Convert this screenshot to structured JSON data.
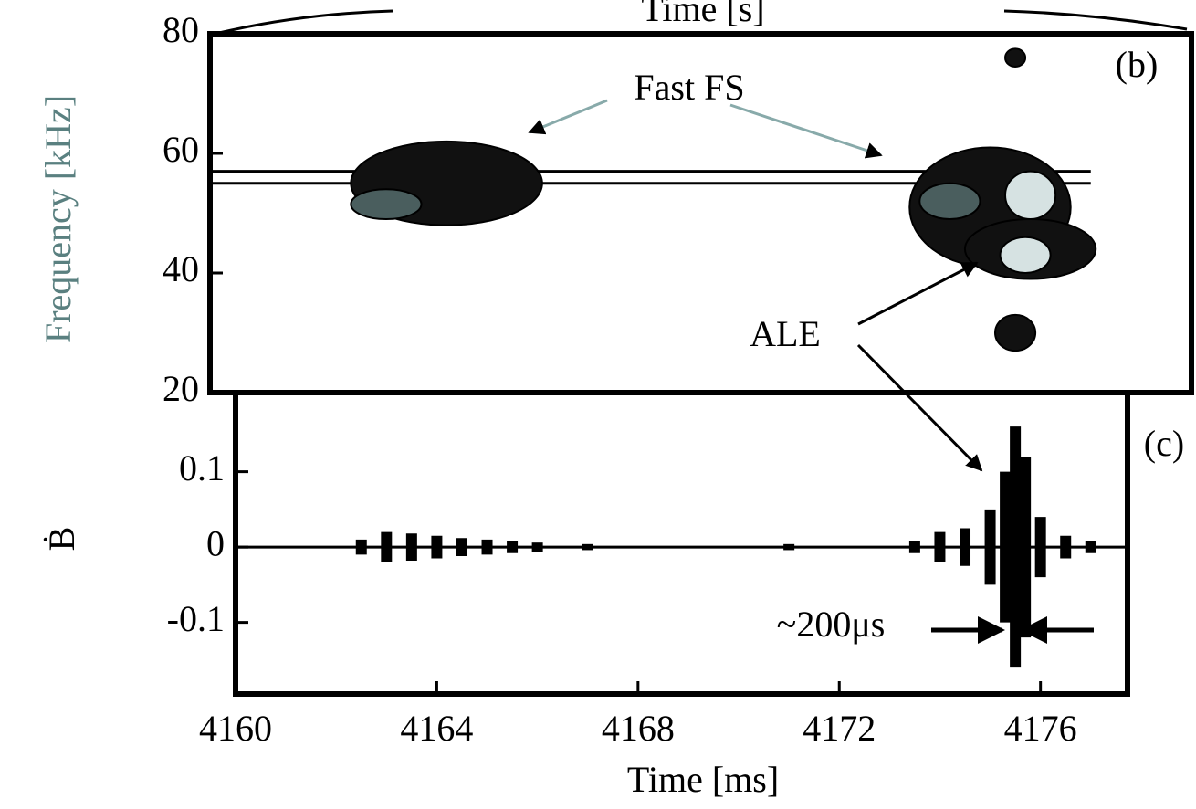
{
  "chart_data": [
    {
      "type": "contour",
      "panel_label": "(b)",
      "title": "Time [s]",
      "ylabel": "Frequency [kHz]",
      "xlim": [
        4159.5,
        4179
      ],
      "ylim": [
        20,
        80
      ],
      "yticks": [
        20,
        40,
        60,
        80
      ],
      "band": [
        55,
        57
      ],
      "level_colors": [
        "#111111",
        "#4a5e5e",
        "#d6e2e2"
      ],
      "blobs": [
        {
          "t": 4164.2,
          "f": 55,
          "rt": 1.9,
          "rf": 7,
          "level": 0
        },
        {
          "t": 4163,
          "f": 51.5,
          "rt": 0.7,
          "rf": 2.5,
          "level": 1
        },
        {
          "t": 4175,
          "f": 51,
          "rt": 1.6,
          "rf": 10,
          "level": 0
        },
        {
          "t": 4175.8,
          "f": 44,
          "rt": 1.3,
          "rf": 5,
          "level": 0
        },
        {
          "t": 4174.2,
          "f": 52,
          "rt": 0.6,
          "rf": 3,
          "level": 1
        },
        {
          "t": 4175.8,
          "f": 53,
          "rt": 0.5,
          "rf": 4,
          "level": 2
        },
        {
          "t": 4175.7,
          "f": 43,
          "rt": 0.5,
          "rf": 3,
          "level": 2
        },
        {
          "t": 4175.5,
          "f": 30,
          "rt": 0.4,
          "rf": 3,
          "level": 0
        },
        {
          "t": 4175.5,
          "f": 76,
          "rt": 0.2,
          "rf": 1.5,
          "level": 0
        }
      ],
      "annotations": [
        "Fast FS",
        "ALE"
      ]
    },
    {
      "type": "signal",
      "panel_label": "(c)",
      "xlabel": "Time [ms]",
      "ylabel": "Ḃ",
      "xlim": [
        4160,
        4177.73
      ],
      "ylim": [
        -0.195,
        0.205
      ],
      "xticks": [
        4160,
        4164,
        4168,
        4172,
        4176
      ],
      "yticks": [
        -0.1,
        0,
        0.1
      ],
      "x": [
        4162.5,
        4163,
        4163.5,
        4164,
        4164.5,
        4165,
        4165.5,
        4166,
        4167,
        4171,
        4173.5,
        4174,
        4174.5,
        4175,
        4175.3,
        4175.5,
        4175.7,
        4176,
        4176.5,
        4177
      ],
      "values": [
        0.01,
        0.02,
        0.018,
        0.015,
        0.012,
        0.01,
        0.008,
        0.006,
        0.004,
        0.004,
        0.008,
        0.02,
        0.025,
        0.05,
        0.1,
        0.16,
        0.12,
        0.04,
        0.015,
        0.008
      ],
      "color": "#000000",
      "annotation": "~200μs"
    }
  ]
}
